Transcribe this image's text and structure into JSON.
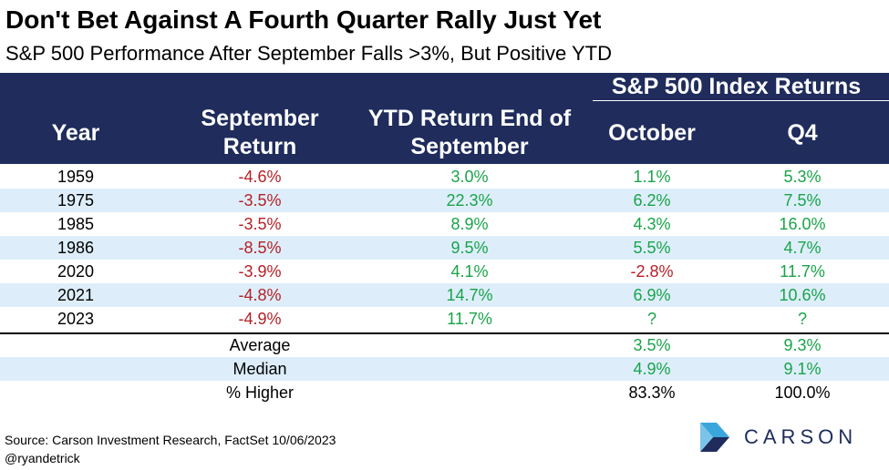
{
  "title": "Don't Bet Against A Fourth Quarter Rally Just Yet",
  "subtitle": "S&P 500 Performance After September Falls >3%, But Positive YTD",
  "header": {
    "group": "S&P 500 Index Returns",
    "year": "Year",
    "september": "September Return",
    "ytd": "YTD Return End of September",
    "october": "October",
    "q4": "Q4"
  },
  "rows": [
    {
      "year": "1959",
      "sep": "-4.6%",
      "ytd": "3.0%",
      "oct": "1.1%",
      "q4": "5.3%"
    },
    {
      "year": "1975",
      "sep": "-3.5%",
      "ytd": "22.3%",
      "oct": "6.2%",
      "q4": "7.5%"
    },
    {
      "year": "1985",
      "sep": "-3.5%",
      "ytd": "8.9%",
      "oct": "4.3%",
      "q4": "16.0%"
    },
    {
      "year": "1986",
      "sep": "-8.5%",
      "ytd": "9.5%",
      "oct": "5.5%",
      "q4": "4.7%"
    },
    {
      "year": "2020",
      "sep": "-3.9%",
      "ytd": "4.1%",
      "oct": "-2.8%",
      "q4": "11.7%"
    },
    {
      "year": "2021",
      "sep": "-4.8%",
      "ytd": "14.7%",
      "oct": "6.9%",
      "q4": "10.6%"
    },
    {
      "year": "2023",
      "sep": "-4.9%",
      "ytd": "11.7%",
      "oct": "?",
      "q4": "?"
    }
  ],
  "summary": [
    {
      "label": "Average",
      "oct": "3.5%",
      "q4": "9.3%"
    },
    {
      "label": "Median",
      "oct": "4.9%",
      "q4": "9.1%"
    },
    {
      "label": "% Higher",
      "oct": "83.3%",
      "q4": "100.0%"
    }
  ],
  "footer": {
    "source": "Source: Carson Investment Research, FactSet 10/06/2023",
    "handle": "@ryandetrick"
  },
  "logo": {
    "text": "CARSON"
  },
  "colors": {
    "header_bg": "#1f2c5c",
    "alt_row": "#ddeefa",
    "negative": "#b52026",
    "positive": "#1aa34a",
    "logo_light": "#3aa6dc"
  }
}
